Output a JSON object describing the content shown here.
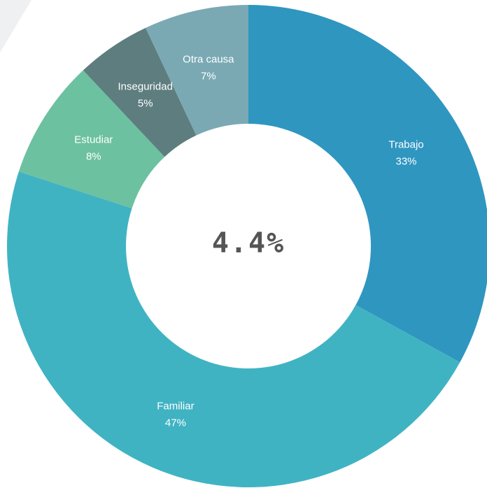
{
  "chart_data": {
    "type": "donut",
    "categories": [
      "Trabajo",
      "Familiar",
      "Estudiar",
      "Inseguridad",
      "Otra causa"
    ],
    "values": [
      33,
      47,
      8,
      5,
      7
    ],
    "value_labels": [
      "33%",
      "47%",
      "8%",
      "5%",
      "7%"
    ],
    "colors": [
      "#2f96c0",
      "#40b3c3",
      "#6cc1a0",
      "#5e7d7f",
      "#7aa9b4"
    ],
    "center_label": "4.4%"
  }
}
